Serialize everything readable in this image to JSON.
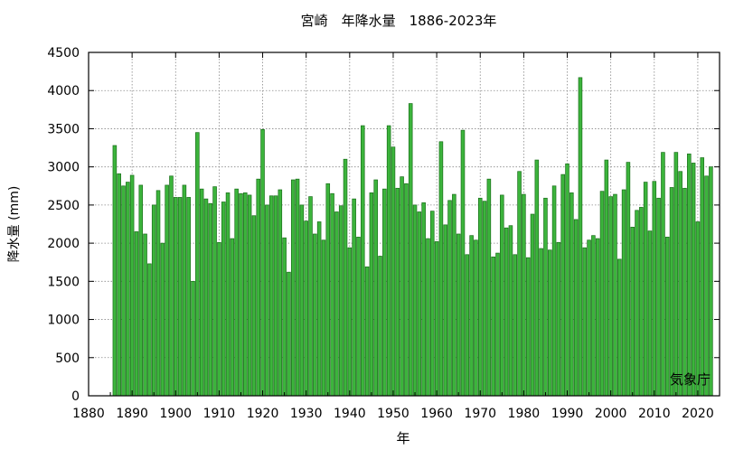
{
  "chart_data": {
    "type": "bar",
    "title": "宮崎　年降水量　1886-2023年",
    "xlabel": "年",
    "ylabel": "降水量 (mm)",
    "annotation": "気象庁",
    "xlim": [
      1880,
      2025
    ],
    "ylim": [
      0,
      4500
    ],
    "xticks": [
      1880,
      1890,
      1900,
      1910,
      1920,
      1930,
      1940,
      1950,
      1960,
      1970,
      1980,
      1990,
      2000,
      2010,
      2020
    ],
    "yticks": [
      0,
      500,
      1000,
      1500,
      2000,
      2500,
      3000,
      3500,
      4000,
      4500
    ],
    "grid": true,
    "bar_color": "#3cb43c",
    "bar_edge_color": "#1a6e1a",
    "x": [
      1886,
      1887,
      1888,
      1889,
      1890,
      1891,
      1892,
      1893,
      1894,
      1895,
      1896,
      1897,
      1898,
      1899,
      1900,
      1901,
      1902,
      1903,
      1904,
      1905,
      1906,
      1907,
      1908,
      1909,
      1910,
      1911,
      1912,
      1913,
      1914,
      1915,
      1916,
      1917,
      1918,
      1919,
      1920,
      1921,
      1922,
      1923,
      1924,
      1925,
      1926,
      1927,
      1928,
      1929,
      1930,
      1931,
      1932,
      1933,
      1934,
      1935,
      1936,
      1937,
      1938,
      1939,
      1940,
      1941,
      1942,
      1943,
      1944,
      1945,
      1946,
      1947,
      1948,
      1949,
      1950,
      1951,
      1952,
      1953,
      1954,
      1955,
      1956,
      1957,
      1958,
      1959,
      1960,
      1961,
      1962,
      1963,
      1964,
      1965,
      1966,
      1967,
      1968,
      1969,
      1970,
      1971,
      1972,
      1973,
      1974,
      1975,
      1976,
      1977,
      1978,
      1979,
      1980,
      1981,
      1982,
      1983,
      1984,
      1985,
      1986,
      1987,
      1988,
      1989,
      1990,
      1991,
      1992,
      1993,
      1994,
      1995,
      1996,
      1997,
      1998,
      1999,
      2000,
      2001,
      2002,
      2003,
      2004,
      2005,
      2006,
      2007,
      2008,
      2009,
      2010,
      2011,
      2012,
      2013,
      2014,
      2015,
      2016,
      2017,
      2018,
      2019,
      2020,
      2021,
      2022,
      2023
    ],
    "values": [
      3280,
      2910,
      2750,
      2800,
      2890,
      2150,
      2760,
      2120,
      1730,
      2500,
      2690,
      2000,
      2760,
      2880,
      2600,
      2600,
      2760,
      2600,
      1500,
      3450,
      2710,
      2580,
      2520,
      2740,
      2010,
      2540,
      2660,
      2060,
      2710,
      2650,
      2660,
      2630,
      2360,
      2840,
      3490,
      2500,
      2620,
      2620,
      2700,
      2070,
      1620,
      2830,
      2840,
      2500,
      2290,
      2610,
      2120,
      2280,
      2040,
      2780,
      2650,
      2410,
      2490,
      3100,
      1940,
      2580,
      2080,
      3540,
      1690,
      2660,
      2830,
      1830,
      2710,
      3540,
      3260,
      2720,
      2870,
      2780,
      3830,
      2500,
      2410,
      2530,
      2060,
      2420,
      2020,
      3330,
      2240,
      2560,
      2640,
      2120,
      3480,
      1850,
      2100,
      2040,
      2590,
      2550,
      2840,
      1820,
      1870,
      2630,
      2200,
      2230,
      1850,
      2940,
      2640,
      1810,
      2380,
      3090,
      1930,
      2590,
      1910,
      2750,
      2010,
      2900,
      3040,
      2660,
      2310,
      4170,
      1940,
      2040,
      2100,
      2060,
      2680,
      3090,
      2610,
      2640,
      1790,
      2700,
      3060,
      2210,
      2430,
      2470,
      2800,
      2160,
      2810,
      2590,
      3190,
      2080,
      2730,
      3190,
      2940,
      2720,
      3170,
      3050,
      2280,
      3120,
      2880,
      3000
    ]
  }
}
